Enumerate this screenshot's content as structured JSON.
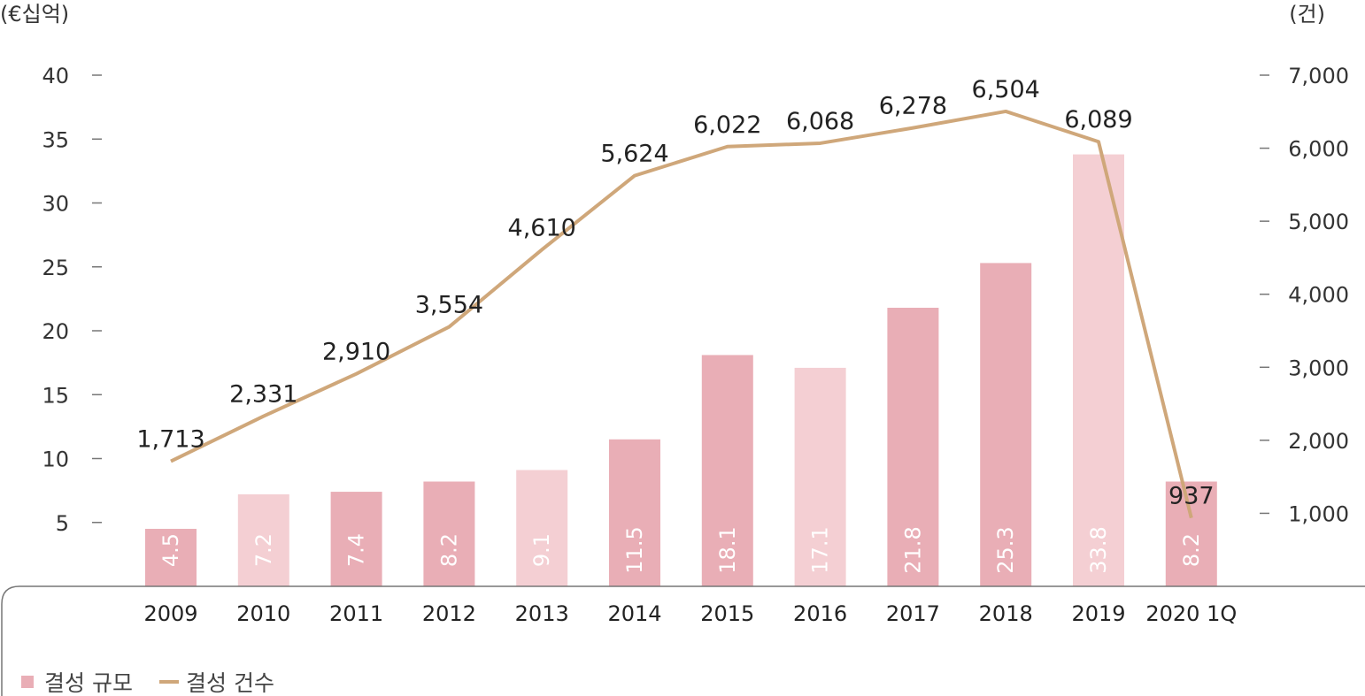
{
  "chart_data": {
    "type": "bar",
    "categories": [
      "2009",
      "2010",
      "2011",
      "2012",
      "2013",
      "2014",
      "2015",
      "2016",
      "2017",
      "2018",
      "2019",
      "2020 1Q"
    ],
    "series": [
      {
        "name": "결성 규모",
        "type": "bar",
        "axis": "left",
        "values": [
          4.5,
          7.2,
          7.4,
          8.2,
          9.1,
          11.5,
          18.1,
          17.1,
          21.8,
          25.3,
          33.8,
          8.2
        ],
        "labels": [
          "4.5",
          "7.2",
          "7.4",
          "8.2",
          "9.1",
          "11.5",
          "18.1",
          "17.1",
          "21.8",
          "25.3",
          "33.8",
          "8.2"
        ]
      },
      {
        "name": "결성 건수",
        "type": "line",
        "axis": "right",
        "values": [
          1713,
          2331,
          2910,
          3554,
          4610,
          5624,
          6022,
          6068,
          6278,
          6504,
          6089,
          937
        ],
        "labels": [
          "1,713",
          "2,331",
          "2,910",
          "3,554",
          "4,610",
          "5,624",
          "6,022",
          "6,068",
          "6,278",
          "6,504",
          "6,089",
          "937"
        ]
      }
    ],
    "left_axis": {
      "unit_label": "(€십억)",
      "ticks": [
        5,
        10,
        15,
        20,
        25,
        30,
        35,
        40
      ],
      "tick_labels": [
        "5",
        "10",
        "15",
        "20",
        "25",
        "30",
        "35",
        "40"
      ],
      "range": [
        0,
        40
      ]
    },
    "right_axis": {
      "unit_label": "(건)",
      "ticks": [
        1000,
        2000,
        3000,
        4000,
        5000,
        6000,
        7000
      ],
      "tick_labels": [
        "1,000",
        "2,000",
        "3,000",
        "4,000",
        "5,000",
        "6,000",
        "7,000"
      ],
      "range": [
        0,
        7000
      ]
    },
    "legend": {
      "position": "bottom-left",
      "items": [
        "결성 규모",
        "결성 건수"
      ]
    },
    "grid": false
  },
  "colors": {
    "bar_dark": "#E9AEB6",
    "bar_light": "#F4CFD3",
    "line": "#CFA77A",
    "axis_line": "#777777"
  }
}
